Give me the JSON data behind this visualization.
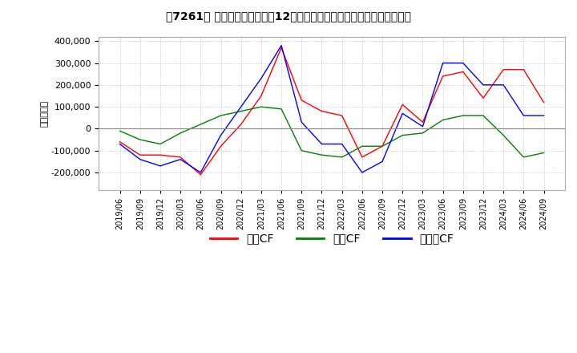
{
  "title": "【7261】 キャッシュフローの12か月移動合計の対前年同期増減額の推移",
  "ylabel": "（百万円）",
  "legend": [
    "営業CF",
    "投資CF",
    "フリーCF"
  ],
  "colors": {
    "営業CF": "#ff0000",
    "投資CF": "#008000",
    "フリーCF": "#0000ff"
  },
  "ylim": [
    -280000,
    420000
  ],
  "yticks": [
    -200000,
    -100000,
    0,
    100000,
    200000,
    300000,
    400000
  ],
  "dates": [
    "2019/06",
    "2019/09",
    "2019/12",
    "2020/03",
    "2020/06",
    "2020/09",
    "2020/12",
    "2021/03",
    "2021/06",
    "2021/09",
    "2021/12",
    "2022/03",
    "2022/06",
    "2022/09",
    "2022/12",
    "2023/03",
    "2023/06",
    "2023/09",
    "2023/12",
    "2024/03",
    "2024/06",
    "2024/09"
  ],
  "営業CF": [
    -60000,
    -120000,
    -120000,
    -130000,
    -210000,
    -80000,
    20000,
    150000,
    370000,
    130000,
    80000,
    60000,
    -130000,
    -80000,
    110000,
    30000,
    240000,
    260000,
    140000,
    270000,
    270000,
    120000
  ],
  "投資CF": [
    -10000,
    -50000,
    -70000,
    -20000,
    20000,
    60000,
    80000,
    100000,
    90000,
    -100000,
    -120000,
    -130000,
    -80000,
    -80000,
    -30000,
    -20000,
    40000,
    60000,
    60000,
    -30000,
    -130000,
    -110000
  ],
  "フリーCF": [
    -70000,
    -140000,
    -170000,
    -140000,
    -200000,
    -30000,
    100000,
    230000,
    380000,
    30000,
    -70000,
    -70000,
    -200000,
    -150000,
    70000,
    10000,
    300000,
    300000,
    200000,
    200000,
    60000,
    60000
  ]
}
